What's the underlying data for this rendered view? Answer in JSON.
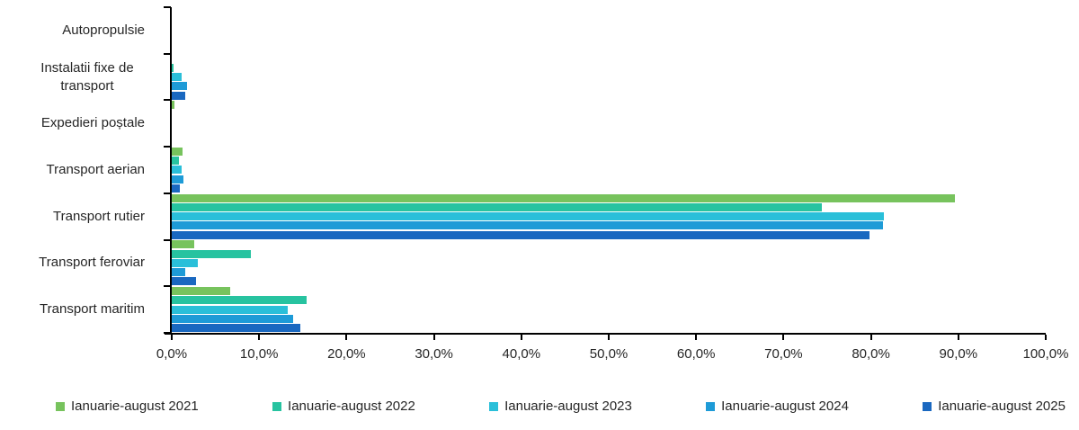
{
  "chart_data": {
    "type": "bar",
    "orientation": "horizontal",
    "title": "",
    "grid": false,
    "legend_position": "bottom",
    "categories": [
      "Autopropulsie",
      "Instalatii fixe de transport",
      "Expedieri poștale",
      "Transport aerian",
      "Transport rutier",
      "Transport feroviar",
      "Transport maritim"
    ],
    "series": [
      {
        "name": "Ianuarie-august 2021",
        "color": "#77C35D",
        "values": [
          0.0,
          0.0,
          0.3,
          1.2,
          89.6,
          2.6,
          6.7
        ]
      },
      {
        "name": "Ianuarie-august 2022",
        "color": "#27C3A0",
        "values": [
          0.0,
          0.2,
          0.0,
          0.8,
          74.4,
          9.1,
          15.4
        ]
      },
      {
        "name": "Ianuarie-august 2023",
        "color": "#2ABFD9",
        "values": [
          0.0,
          1.1,
          0.0,
          1.1,
          81.5,
          3.0,
          13.3
        ]
      },
      {
        "name": "Ianuarie-august 2024",
        "color": "#1E9BD7",
        "values": [
          0.0,
          1.7,
          0.0,
          1.3,
          81.4,
          1.5,
          13.9
        ]
      },
      {
        "name": "Ianuarie-august 2025",
        "color": "#1A68C0",
        "values": [
          0.0,
          1.5,
          0.0,
          0.9,
          79.8,
          2.8,
          14.7
        ]
      }
    ],
    "x_axis": {
      "min": 0,
      "max": 100,
      "tick_step": 10,
      "tick_labels": [
        "0,0%",
        "10,0%",
        "20,0%",
        "30,0%",
        "40,0%",
        "50,0%",
        "60,0%",
        "70,0%",
        "80,0%",
        "90,0%",
        "100,0%"
      ]
    }
  }
}
